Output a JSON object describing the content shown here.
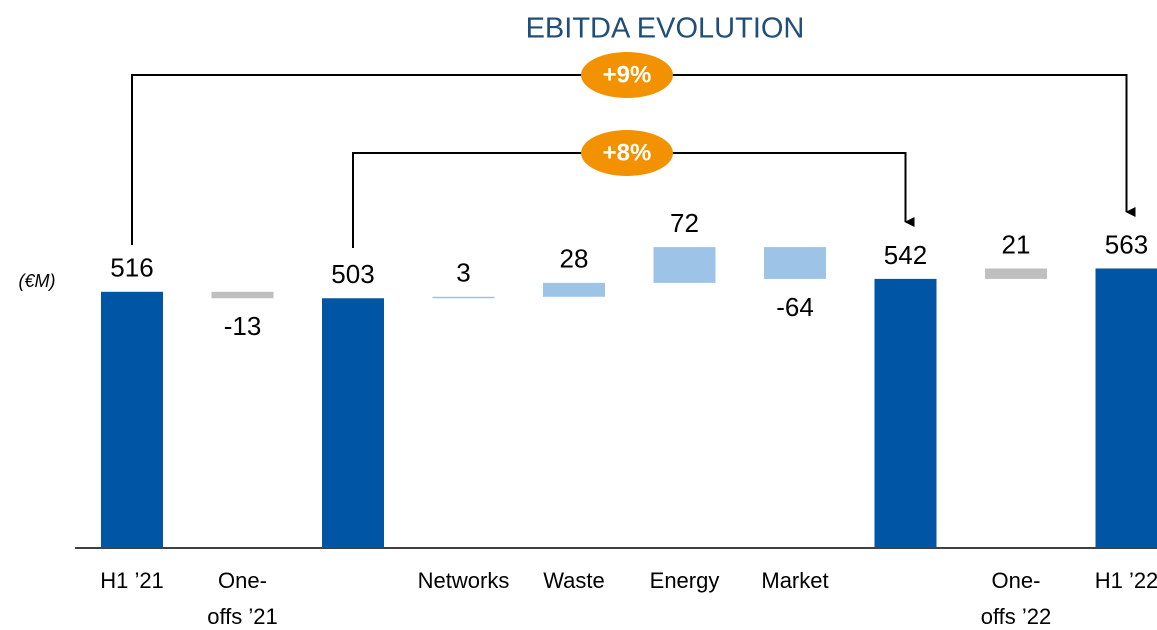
{
  "chart_data": {
    "type": "waterfall",
    "title": "EBITDA EVOLUTION",
    "unit_label": "(€M)",
    "categories": [
      "H1 ’21",
      "One-offs ’21",
      null,
      "Networks",
      "Waste",
      "Energy",
      "Market",
      null,
      "One-offs ’22",
      "H1 ’22"
    ],
    "values": [
      516,
      -13,
      503,
      3,
      28,
      72,
      -64,
      542,
      21,
      563
    ],
    "measure": [
      "total",
      "relative",
      "total",
      "relative",
      "relative",
      "relative",
      "relative",
      "total",
      "relative",
      "total"
    ],
    "colors": [
      "#0055a4",
      "#bfbfbf",
      "#0055a4",
      "#9dc3e6",
      "#9dc3e6",
      "#9dc3e6",
      "#9dc3e6",
      "#0055a4",
      "#bfbfbf",
      "#0055a4"
    ],
    "annotations": [
      "+9%",
      "+8%"
    ]
  }
}
